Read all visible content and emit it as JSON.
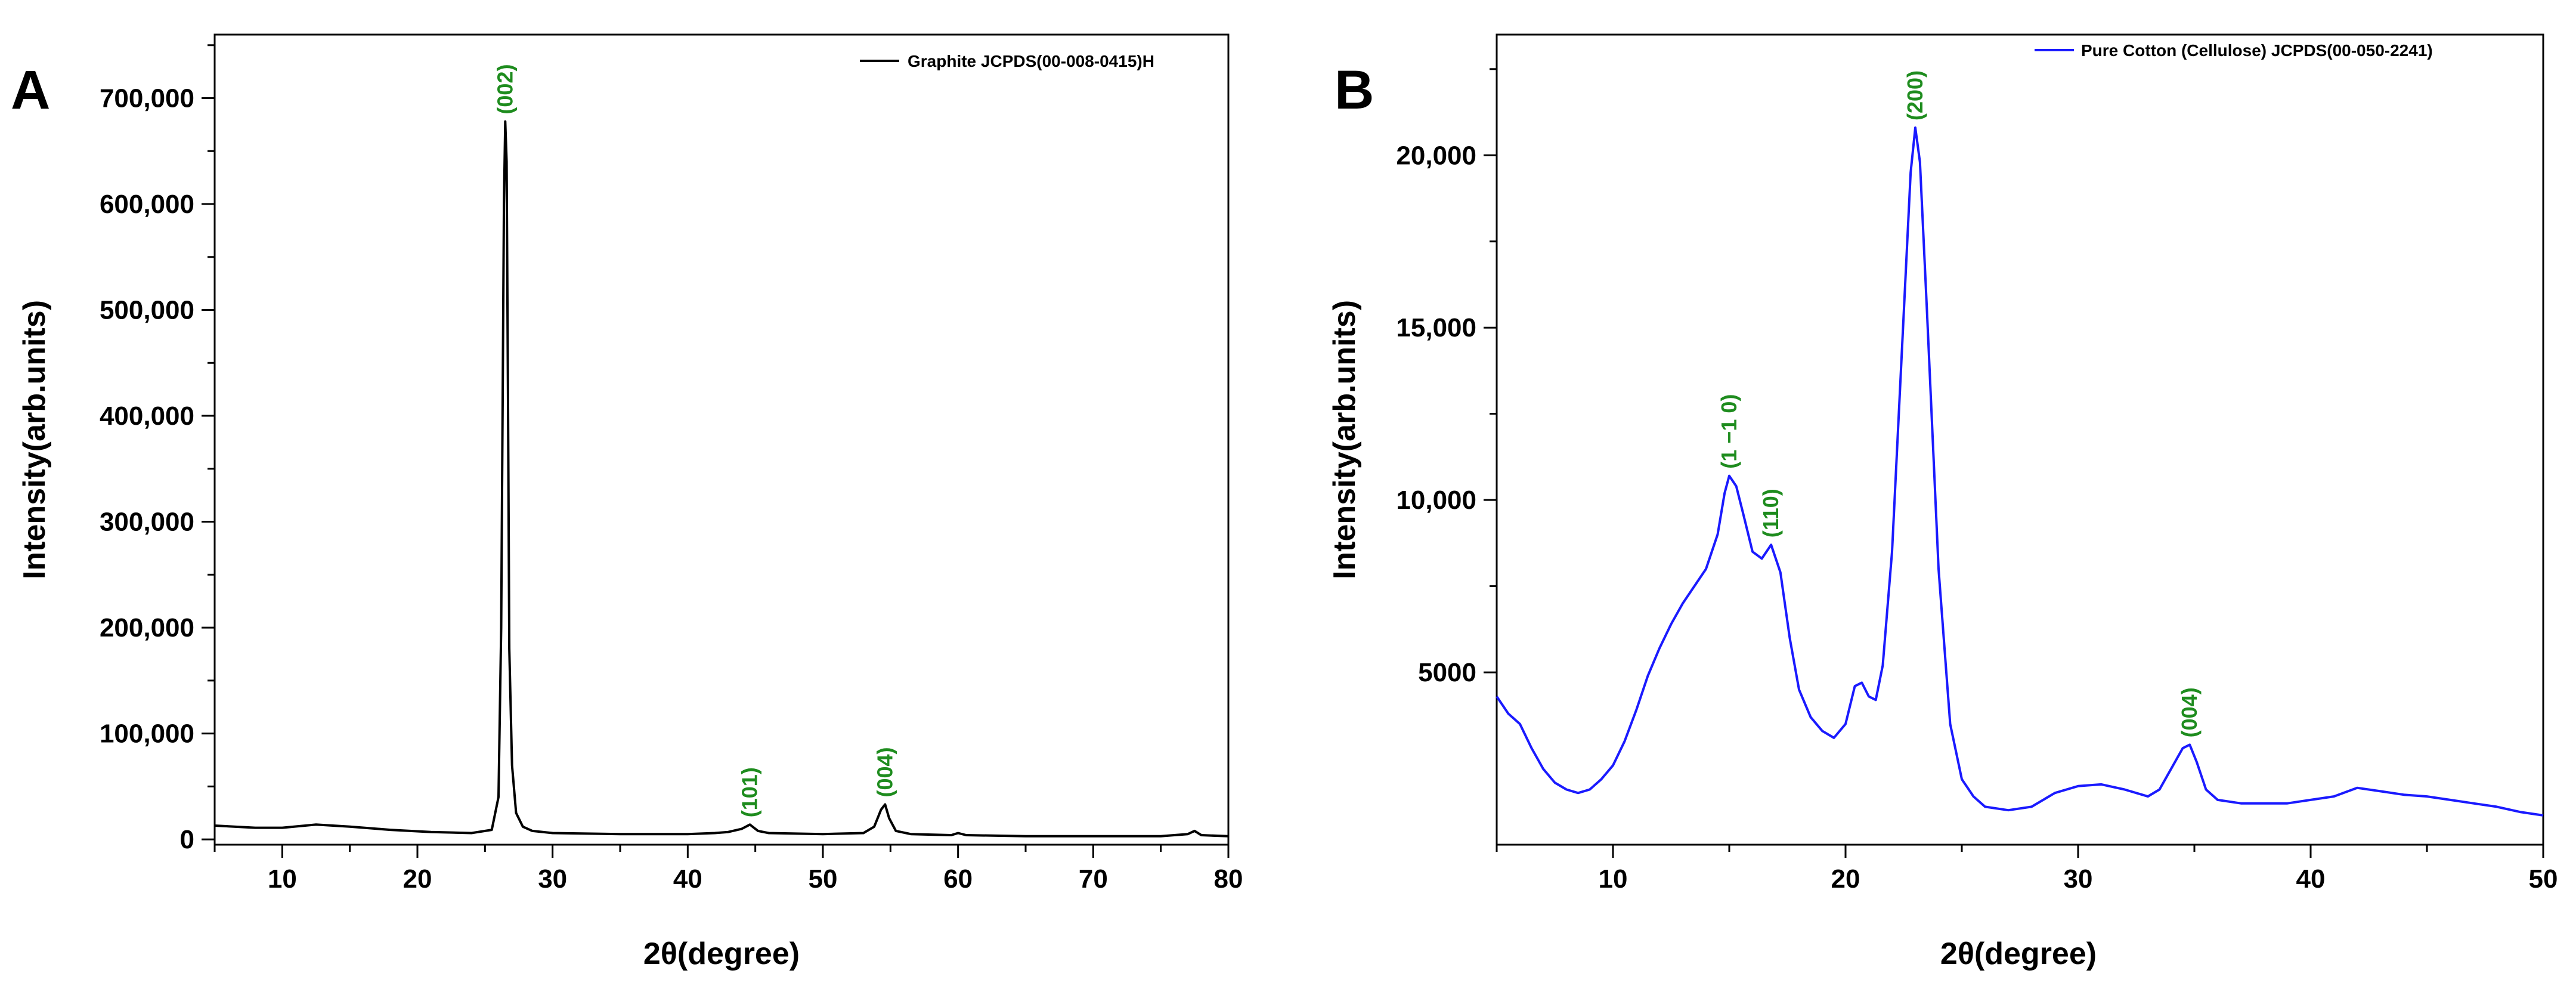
{
  "chart_data": [
    {
      "type": "line",
      "panel": "A",
      "legend": "Graphite JCPDS(00-008-0415)H",
      "xlabel": "2θ(degree)",
      "ylabel": "Intensity(arb.units)",
      "xlim": [
        5,
        80
      ],
      "ylim": [
        -5000,
        760000
      ],
      "x_ticks": [
        10,
        20,
        30,
        40,
        50,
        60,
        70,
        80
      ],
      "x_tick_labels": [
        "10",
        "20",
        "30",
        "40",
        "50",
        "60",
        "70",
        "80"
      ],
      "y_ticks": [
        0,
        100000,
        200000,
        300000,
        400000,
        500000,
        600000,
        700000
      ],
      "y_tick_labels": [
        "0",
        "100,000",
        "200,000",
        "300,000",
        "400,000",
        "500,000",
        "600,000",
        "700,000"
      ],
      "series_color": "#000000",
      "series": {
        "name": "Graphite JCPDS(00-008-0415)H",
        "x": [
          5,
          8,
          10,
          12.5,
          15,
          18,
          21,
          24,
          25.5,
          26.0,
          26.2,
          26.4,
          26.5,
          26.6,
          26.7,
          26.8,
          27.0,
          27.3,
          27.8,
          28.5,
          30,
          35,
          40,
          42,
          43,
          44,
          44.6,
          45.2,
          46,
          50,
          53,
          53.8,
          54.3,
          54.6,
          54.9,
          55.4,
          56.5,
          59.5,
          60,
          60.6,
          65,
          70,
          75,
          77,
          77.5,
          78,
          80
        ],
        "y": [
          13000,
          11000,
          11000,
          14000,
          12000,
          9000,
          7000,
          6000,
          9000,
          40000,
          200000,
          600000,
          678000,
          640000,
          420000,
          180000,
          70000,
          25000,
          12000,
          8000,
          6000,
          5000,
          5000,
          6000,
          7000,
          10000,
          14000,
          8000,
          6000,
          5000,
          6000,
          12000,
          28000,
          33000,
          20000,
          8000,
          5000,
          4000,
          6000,
          4000,
          3000,
          3000,
          3000,
          5000,
          8000,
          4000,
          3000
        ]
      },
      "annotations": [
        {
          "text": "(002)",
          "x": 26.5,
          "y": 678000
        },
        {
          "text": "(101)",
          "x": 44.6,
          "y": 14000
        },
        {
          "text": "(004)",
          "x": 54.6,
          "y": 33000
        }
      ],
      "annotation_color": "#1e8c1e"
    },
    {
      "type": "line",
      "panel": "B",
      "legend": "Pure Cotton (Cellulose) JCPDS(00-050-2241)",
      "xlabel": "2θ(degree)",
      "ylabel": "Intensity(arb.units)",
      "xlim": [
        5,
        50
      ],
      "ylim": [
        0,
        23500
      ],
      "x_ticks": [
        10,
        20,
        30,
        40,
        50
      ],
      "x_tick_labels": [
        "10",
        "20",
        "30",
        "40",
        "50"
      ],
      "y_ticks": [
        5000,
        10000,
        15000,
        20000
      ],
      "y_tick_labels": [
        "5000",
        "10,000",
        "15,000",
        "20,000"
      ],
      "series_color": "#1a1aff",
      "series": {
        "name": "Pure Cotton (Cellulose) JCPDS(00-050-2241)",
        "x": [
          5,
          5.5,
          6,
          6.5,
          7,
          7.5,
          8,
          8.5,
          9,
          9.5,
          10,
          10.5,
          11,
          11.5,
          12,
          12.5,
          13,
          13.5,
          14,
          14.5,
          14.8,
          15,
          15.3,
          15.6,
          16,
          16.4,
          16.8,
          17.2,
          17.6,
          18,
          18.5,
          19,
          19.5,
          20,
          20.4,
          20.7,
          21,
          21.3,
          21.6,
          22,
          22.4,
          22.8,
          23,
          23.2,
          23.5,
          24,
          24.5,
          25,
          25.5,
          26,
          27,
          28,
          29,
          30,
          31,
          32,
          33,
          33.5,
          34,
          34.5,
          34.8,
          35.1,
          35.5,
          36,
          37,
          38,
          39,
          40,
          41,
          42,
          43,
          44,
          45,
          46,
          47,
          48,
          49,
          50
        ],
        "y": [
          4300,
          3800,
          3500,
          2800,
          2200,
          1800,
          1600,
          1500,
          1600,
          1900,
          2300,
          3000,
          3900,
          4900,
          5700,
          6400,
          7000,
          7500,
          8000,
          9000,
          10200,
          10700,
          10400,
          9600,
          8500,
          8300,
          8700,
          7900,
          6000,
          4500,
          3700,
          3300,
          3100,
          3500,
          4600,
          4700,
          4300,
          4200,
          5200,
          8500,
          14000,
          19500,
          20800,
          19800,
          15500,
          8000,
          3500,
          1900,
          1400,
          1100,
          1000,
          1100,
          1500,
          1700,
          1750,
          1600,
          1400,
          1600,
          2200,
          2800,
          2900,
          2400,
          1600,
          1300,
          1200,
          1200,
          1200,
          1300,
          1400,
          1650,
          1550,
          1450,
          1400,
          1300,
          1200,
          1100,
          950,
          850
        ]
      },
      "annotations": [
        {
          "text": "(1 −1 0)",
          "x": 15.0,
          "y": 10700
        },
        {
          "text": "(110)",
          "x": 16.8,
          "y": 8700
        },
        {
          "text": "(200)",
          "x": 23.0,
          "y": 20800
        },
        {
          "text": "(004)",
          "x": 34.8,
          "y": 2900
        }
      ],
      "annotation_color": "#1e8c1e"
    }
  ]
}
